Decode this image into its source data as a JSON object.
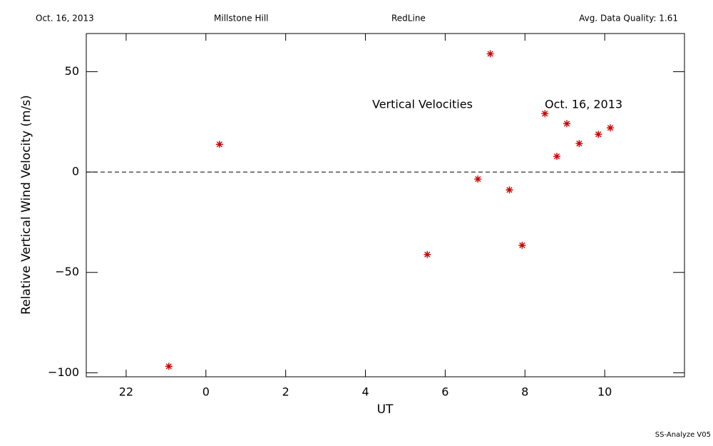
{
  "chart_data": {
    "type": "scatter",
    "header": [
      "Oct. 16, 2013",
      "Millstone Hill",
      "RedLine",
      "Avg. Data Quality: 1.61"
    ],
    "annotations": [
      "Vertical Velocities",
      "Oct. 16, 2013"
    ],
    "footer": "SS-Analyze V05",
    "x_label": "UT",
    "y_label": "Relative Vertical Wind Velocity (m/s)",
    "xlim": [
      -3,
      12
    ],
    "xticks": [
      {
        "value": -2,
        "label": "22"
      },
      0,
      2,
      4,
      6,
      8,
      10
    ],
    "ylim": [
      -102,
      69
    ],
    "yticks": [
      {
        "value": -100,
        "label": "−100"
      },
      {
        "value": -50,
        "label": "−50"
      },
      0,
      50
    ],
    "reference_line": 0,
    "color": "#cc0000",
    "x": [
      -0.93,
      0.34,
      5.55,
      6.82,
      7.13,
      7.61,
      7.93,
      8.5,
      8.8,
      9.05,
      9.36,
      9.84,
      10.14
    ],
    "values": [
      -96.8,
      13.8,
      -41.1,
      -3.5,
      58.9,
      -8.9,
      -36.5,
      29.1,
      7.8,
      24.1,
      14.2,
      18.8,
      22.0
    ]
  }
}
